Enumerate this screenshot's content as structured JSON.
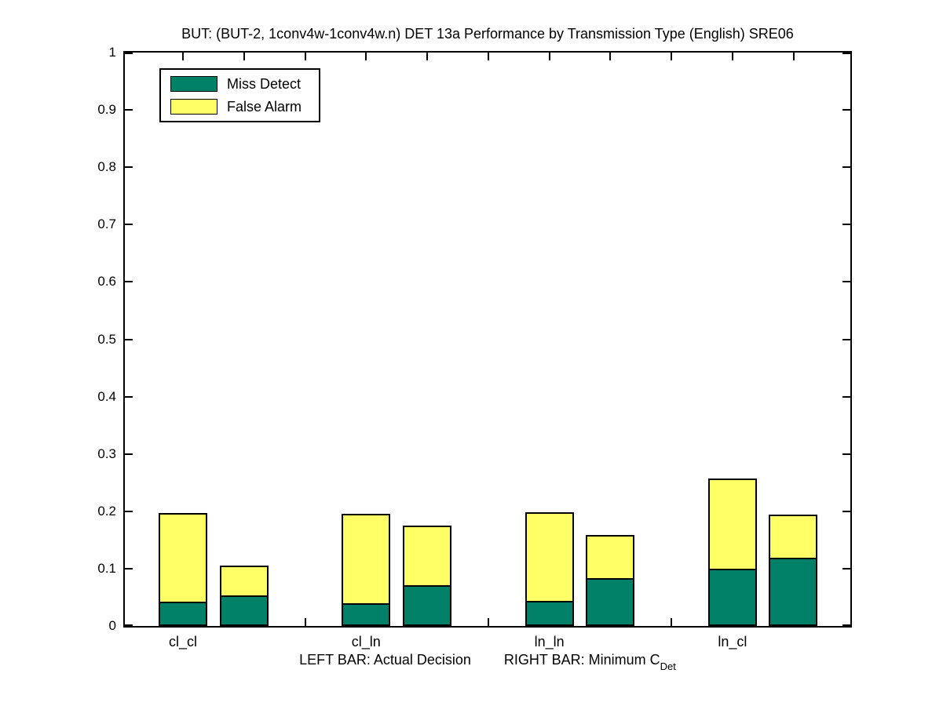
{
  "figure": {
    "title": "BUT: (BUT-2, 1conv4w-1conv4w.n) DET 13a Performance by Transmission Type (English) SRE06",
    "caption_left": "LEFT BAR: Actual Decision",
    "caption_right": "RIGHT BAR: Minimum C",
    "caption_right_subscript": "Det",
    "legend": [
      {
        "label": "Miss Detect",
        "color": "#008066"
      },
      {
        "label": "False Alarm",
        "color": "#FFFF66"
      }
    ],
    "colors": {
      "miss_detect": "#008066",
      "false_alarm": "#FFFF66",
      "axis": "#000000",
      "background": "#FFFFFF"
    }
  },
  "chart_data": {
    "type": "bar",
    "stacked": true,
    "title": "BUT: (BUT-2, 1conv4w-1conv4w.n) DET 13a Performance by Transmission Type (English) SRE06",
    "categories": [
      "cl_cl",
      "cl_ln",
      "ln_ln",
      "ln_cl"
    ],
    "yticks": [
      "0",
      "0.1",
      "0.2",
      "0.3",
      "0.4",
      "0.5",
      "0.6",
      "0.7",
      "0.8",
      "0.9",
      "1"
    ],
    "ylim": [
      0,
      1
    ],
    "grid": false,
    "legend_position": "top-left-inside",
    "stack_order": [
      "Miss Detect",
      "False Alarm"
    ],
    "series": [
      {
        "name": "Actual Decision (left bar)",
        "miss_detect": [
          0.039,
          0.037,
          0.041,
          0.097
        ],
        "false_alarm": [
          0.155,
          0.156,
          0.155,
          0.158
        ],
        "totals": [
          0.194,
          0.193,
          0.196,
          0.255
        ]
      },
      {
        "name": "Minimum CDet (right bar)",
        "miss_detect": [
          0.051,
          0.068,
          0.081,
          0.116
        ],
        "false_alarm": [
          0.052,
          0.104,
          0.075,
          0.075
        ],
        "totals": [
          0.103,
          0.172,
          0.156,
          0.191
        ]
      }
    ]
  }
}
